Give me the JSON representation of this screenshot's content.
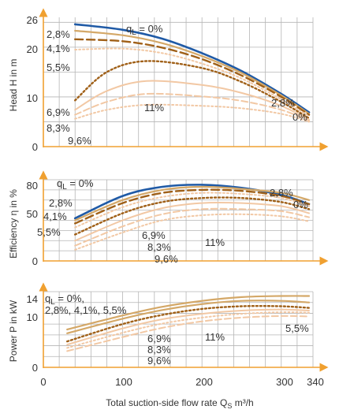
{
  "xlabel_main": "Total suction-side flow rate Q",
  "xlabel_sub": "S",
  "xlabel_unit": " m³/h",
  "colors": {
    "grid": "#b5b5b5",
    "axis": "#f0a030",
    "blue": "#1f5aa6",
    "dark": "#a06018",
    "mid": "#d4a868",
    "light": "#f2c8a4",
    "lighter": "#f6d8bc"
  },
  "chart_data": [
    {
      "type": "line",
      "panel": "head",
      "ylabel": "Head H in m",
      "ylim": [
        0,
        26
      ],
      "yticks": [
        "0",
        "10",
        "20",
        "26"
      ],
      "xlim": [
        0,
        340
      ],
      "xticks": [
        "0",
        "100",
        "200",
        "300",
        "340"
      ],
      "annotations": [
        "q",
        "L",
        " = 0%",
        "2,8%",
        "4,1%",
        "5,5%",
        "6,9%",
        "8,3%",
        "9,6%",
        "11%",
        "2,8%",
        "0%"
      ],
      "series": [
        {
          "name": "0%",
          "style": "solid-blue",
          "x": [
            40,
            100,
            150,
            200,
            250,
            300,
            335
          ],
          "y": [
            24.6,
            23.5,
            21.7,
            18.8,
            15.2,
            10.6,
            6.9
          ]
        },
        {
          "name": "2,8%",
          "style": "solid-tan",
          "x": [
            40,
            100,
            150,
            200,
            250,
            300,
            335
          ],
          "y": [
            23.3,
            22.4,
            20.8,
            18.2,
            14.8,
            10.3,
            6.6
          ]
        },
        {
          "name": "4,1%",
          "style": "dashed-dark",
          "x": [
            40,
            100,
            150,
            200,
            250,
            300,
            335
          ],
          "y": [
            21.6,
            21.2,
            19.9,
            17.6,
            14.3,
            10.0,
            6.4
          ]
        },
        {
          "name": "5,5%",
          "style": "dotted-light",
          "x": [
            40,
            100,
            150,
            200,
            250,
            300,
            335
          ],
          "y": [
            19.5,
            19.7,
            18.8,
            16.7,
            13.7,
            9.5,
            6.1
          ]
        },
        {
          "name": "6,9%",
          "style": "dotted-dark",
          "x": [
            40,
            80,
            130,
            200,
            250,
            300,
            335
          ],
          "y": [
            9.3,
            15.0,
            17.2,
            15.8,
            13.0,
            9.0,
            5.7
          ]
        },
        {
          "name": "8,3%",
          "style": "solid-light",
          "x": [
            40,
            80,
            130,
            200,
            250,
            300,
            335
          ],
          "y": [
            7.4,
            11.2,
            13.2,
            12.4,
            10.8,
            8.2,
            5.4
          ]
        },
        {
          "name": "9,6%",
          "style": "dashed-light",
          "x": [
            40,
            80,
            130,
            200,
            250,
            300,
            335
          ],
          "y": [
            6.4,
            9.0,
            10.6,
            10.1,
            9.2,
            7.4,
            5.2
          ]
        },
        {
          "name": "11%",
          "style": "dotted-light",
          "x": [
            40,
            80,
            130,
            200,
            250,
            300,
            335
          ],
          "y": [
            5.6,
            7.4,
            8.4,
            8.2,
            7.7,
            6.6,
            5.0
          ]
        }
      ]
    },
    {
      "type": "line",
      "panel": "efficiency",
      "ylabel": "Efficiency η in %",
      "ylim": [
        0,
        80
      ],
      "yticks": [
        "0",
        "50",
        "80"
      ],
      "xlim": [
        0,
        340
      ],
      "xticks": [
        "0",
        "100",
        "200",
        "300",
        "340"
      ],
      "annotations": [
        "q",
        "L",
        " = 0%",
        "2,8%",
        "4,1%",
        "5,5%",
        "6,9%",
        "8,3%",
        "9,6%",
        "11%",
        "2,8%",
        "0%"
      ],
      "series": [
        {
          "name": "0%",
          "style": "solid-blue",
          "x": [
            40,
            100,
            150,
            200,
            250,
            300,
            335
          ],
          "y": [
            42,
            64,
            73,
            75,
            72,
            65,
            56
          ]
        },
        {
          "name": "2,8%",
          "style": "solid-tan",
          "x": [
            40,
            100,
            150,
            200,
            250,
            300,
            335
          ],
          "y": [
            40,
            60,
            70,
            73,
            71,
            67,
            60
          ]
        },
        {
          "name": "4,1%",
          "style": "dashed-dark",
          "x": [
            40,
            100,
            150,
            200,
            250,
            300,
            335
          ],
          "y": [
            37,
            57,
            67,
            70,
            69,
            64,
            56
          ]
        },
        {
          "name": "5,5%",
          "style": "dotted-light",
          "x": [
            40,
            100,
            150,
            200,
            250,
            300,
            335
          ],
          "y": [
            33,
            53,
            63,
            67,
            66,
            62,
            54
          ]
        },
        {
          "name": "6,9%",
          "style": "dotted-dark",
          "x": [
            40,
            100,
            150,
            200,
            250,
            300,
            335
          ],
          "y": [
            26,
            47,
            58,
            62,
            62,
            58,
            51
          ]
        },
        {
          "name": "8,3%",
          "style": "solid-light",
          "x": [
            40,
            100,
            150,
            200,
            250,
            300,
            335
          ],
          "y": [
            20,
            40,
            52,
            57,
            57,
            54,
            47
          ]
        },
        {
          "name": "9,6%",
          "style": "dashed-light",
          "x": [
            40,
            100,
            150,
            200,
            250,
            300,
            335
          ],
          "y": [
            15,
            34,
            46,
            51,
            51,
            49,
            43
          ]
        },
        {
          "name": "11%",
          "style": "dotted-light",
          "x": [
            40,
            100,
            150,
            200,
            250,
            300,
            335
          ],
          "y": [
            11,
            28,
            40,
            45,
            46,
            44,
            39
          ]
        }
      ]
    },
    {
      "type": "line",
      "panel": "power",
      "ylabel": "Power P in kW",
      "ylim": [
        0,
        14
      ],
      "yticks": [
        "0",
        "10",
        "14"
      ],
      "xlim": [
        0,
        340
      ],
      "xticks": [
        "0",
        "100",
        "200",
        "300",
        "340"
      ],
      "annotations": [
        "q",
        "L",
        " = 0%,",
        "2,8%, 4,1%, 5,5%",
        "6,9%",
        "8,3%",
        "9,6%",
        "11%",
        "5,5%"
      ],
      "series": [
        {
          "name": "0%, 2,8%, 4,1%, 5,5%",
          "style": "solid-tan",
          "x": [
            30,
            100,
            150,
            200,
            250,
            300,
            335
          ],
          "y": [
            7.0,
            9.6,
            11.2,
            12.3,
            13.0,
            13.2,
            13.2
          ]
        },
        {
          "name": "5,5%",
          "style": "solid-tan",
          "x": [
            30,
            100,
            150,
            200,
            250,
            300,
            335
          ],
          "y": [
            6.3,
            9.0,
            10.6,
            11.7,
            12.3,
            12.3,
            12.0
          ]
        },
        {
          "name": "6,9%",
          "style": "dotted-dark",
          "x": [
            30,
            100,
            150,
            200,
            250,
            300,
            335
          ],
          "y": [
            4.8,
            8.0,
            9.7,
            10.8,
            11.3,
            11.3,
            11.0
          ]
        },
        {
          "name": "8,3%",
          "style": "solid-light",
          "x": [
            30,
            100,
            150,
            200,
            250,
            300,
            335
          ],
          "y": [
            4.2,
            7.2,
            8.9,
            9.9,
            10.5,
            10.7,
            10.5
          ]
        },
        {
          "name": "9,6%",
          "style": "dotted-light",
          "x": [
            30,
            100,
            150,
            200,
            250,
            300,
            335
          ],
          "y": [
            3.6,
            6.4,
            8.1,
            9.2,
            9.9,
            10.2,
            10.1
          ]
        },
        {
          "name": "11%",
          "style": "dashed-light",
          "x": [
            30,
            100,
            150,
            200,
            250,
            300,
            335
          ],
          "y": [
            3.0,
            5.6,
            7.3,
            8.5,
            9.2,
            9.5,
            9.4
          ]
        }
      ]
    }
  ]
}
